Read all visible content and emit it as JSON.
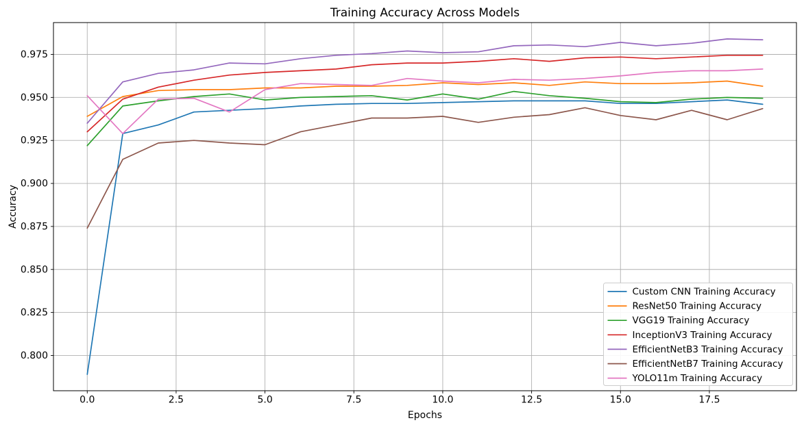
{
  "chart_data": {
    "type": "line",
    "title": "Training Accuracy Across Models",
    "xlabel": "Epochs",
    "ylabel": "Accuracy",
    "grid": true,
    "legend_position": "lower right",
    "xlim": [
      -0.95,
      19.95
    ],
    "ylim": [
      0.7795,
      0.9935
    ],
    "xticks": [
      0,
      2.5,
      5,
      7.5,
      10,
      12.5,
      15,
      17.5
    ],
    "xtick_labels": [
      "0.0",
      "2.5",
      "5.0",
      "7.5",
      "10.0",
      "12.5",
      "15.0",
      "17.5"
    ],
    "yticks": [
      0.8,
      0.825,
      0.85,
      0.875,
      0.9,
      0.925,
      0.95,
      0.975
    ],
    "ytick_labels": [
      "0.800",
      "0.825",
      "0.850",
      "0.875",
      "0.900",
      "0.925",
      "0.950",
      "0.975"
    ],
    "x": [
      0,
      1,
      2,
      3,
      4,
      5,
      6,
      7,
      8,
      9,
      10,
      11,
      12,
      13,
      14,
      15,
      16,
      17,
      18,
      19
    ],
    "series": [
      {
        "name": "Custom CNN Training Accuracy",
        "color": "#1f77b4",
        "values": [
          0.789,
          0.929,
          0.934,
          0.9415,
          0.9425,
          0.9435,
          0.945,
          0.946,
          0.9465,
          0.9465,
          0.947,
          0.9475,
          0.948,
          0.948,
          0.948,
          0.9465,
          0.9465,
          0.9475,
          0.9485,
          0.946
        ]
      },
      {
        "name": "ResNet50 Training Accuracy",
        "color": "#ff7f0e",
        "values": [
          0.939,
          0.9505,
          0.954,
          0.9545,
          0.9545,
          0.9555,
          0.9555,
          0.9565,
          0.9565,
          0.957,
          0.9585,
          0.9575,
          0.9585,
          0.957,
          0.959,
          0.958,
          0.958,
          0.9585,
          0.9595,
          0.9565
        ]
      },
      {
        "name": "VGG19 Training Accuracy",
        "color": "#2ca02c",
        "values": [
          0.922,
          0.945,
          0.948,
          0.9505,
          0.952,
          0.9485,
          0.95,
          0.9505,
          0.951,
          0.9485,
          0.952,
          0.949,
          0.9535,
          0.951,
          0.9495,
          0.9475,
          0.947,
          0.949,
          0.95,
          0.9495
        ]
      },
      {
        "name": "InceptionV3 Training Accuracy",
        "color": "#d62728",
        "values": [
          0.93,
          0.949,
          0.956,
          0.96,
          0.963,
          0.9645,
          0.9655,
          0.9665,
          0.969,
          0.97,
          0.97,
          0.971,
          0.9725,
          0.971,
          0.973,
          0.9735,
          0.9725,
          0.9735,
          0.9745,
          0.9745
        ]
      },
      {
        "name": "EfficientNetB3 Training Accuracy",
        "color": "#9467bd",
        "values": [
          0.935,
          0.959,
          0.964,
          0.966,
          0.97,
          0.9695,
          0.9725,
          0.9745,
          0.9755,
          0.977,
          0.976,
          0.9765,
          0.98,
          0.9805,
          0.9795,
          0.982,
          0.98,
          0.9815,
          0.984,
          0.9835
        ]
      },
      {
        "name": "EfficientNetB7 Training Accuracy",
        "color": "#8c564b",
        "values": [
          0.874,
          0.914,
          0.9235,
          0.925,
          0.9235,
          0.9225,
          0.93,
          0.934,
          0.938,
          0.938,
          0.939,
          0.9355,
          0.9385,
          0.94,
          0.944,
          0.9395,
          0.937,
          0.9425,
          0.937,
          0.9435
        ]
      },
      {
        "name": "YOLO11m Training Accuracy",
        "color": "#e377c2",
        "values": [
          0.951,
          0.929,
          0.949,
          0.9495,
          0.9415,
          0.9545,
          0.958,
          0.9575,
          0.957,
          0.961,
          0.9595,
          0.9585,
          0.9605,
          0.96,
          0.961,
          0.9625,
          0.9645,
          0.9655,
          0.9655,
          0.9665
        ]
      }
    ]
  }
}
